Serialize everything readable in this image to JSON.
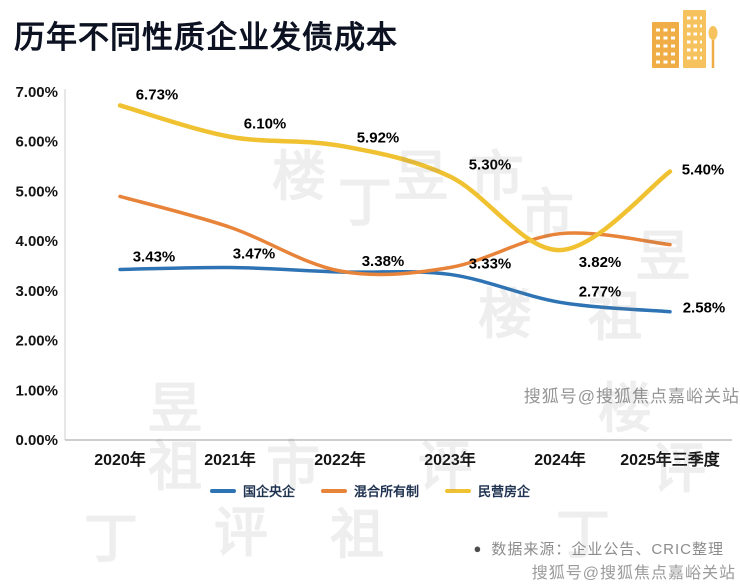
{
  "header": {
    "title": "历年不同性质企业发债成本"
  },
  "chart_data": {
    "type": "line",
    "title": "历年不同性质企业发债成本",
    "categories": [
      "2020年",
      "2021年",
      "2022年",
      "2023年",
      "2024年",
      "2025年三季度"
    ],
    "series": [
      {
        "name": "国企央企",
        "color": "#2e74b5",
        "values": [
          3.43,
          3.47,
          3.38,
          3.33,
          2.77,
          2.58
        ],
        "point_labels": [
          "3.43%",
          "3.47%",
          "3.38%",
          "3.33%",
          "2.77%",
          "2.58%"
        ]
      },
      {
        "name": "混合所有制",
        "color": "#e8833a",
        "values": [
          4.9,
          4.28,
          3.4,
          3.47,
          4.15,
          3.93
        ],
        "point_labels": [
          "",
          "",
          "",
          "",
          "",
          ""
        ]
      },
      {
        "name": "民营房企",
        "color": "#f0c232",
        "values": [
          6.73,
          6.1,
          5.92,
          5.3,
          3.82,
          5.4
        ],
        "point_labels": [
          "6.73%",
          "6.10%",
          "5.92%",
          "5.30%",
          "3.82%",
          "5.40%"
        ]
      }
    ],
    "ylim": [
      0,
      7
    ],
    "yticks": [
      "0.00%",
      "1.00%",
      "2.00%",
      "3.00%",
      "4.00%",
      "5.00%",
      "6.00%",
      "7.00%"
    ],
    "legend_position": "bottom",
    "grid": false
  },
  "legend": {
    "items": [
      {
        "label": "国企央企",
        "color": "#2e74b5"
      },
      {
        "label": "混合所有制",
        "color": "#e8833a"
      },
      {
        "label": "民营房企",
        "color": "#f0c232"
      }
    ]
  },
  "footer": {
    "bullet": "●",
    "source_note": "数据来源：企业公告、CRIC整理"
  },
  "watermarks": {
    "sohu_mid": "搜狐号@搜狐焦点嘉峪关站",
    "sohu_bottom": "搜狐号@搜狐焦点嘉峪关站",
    "pattern_text": "丁祖昱评楼市"
  }
}
